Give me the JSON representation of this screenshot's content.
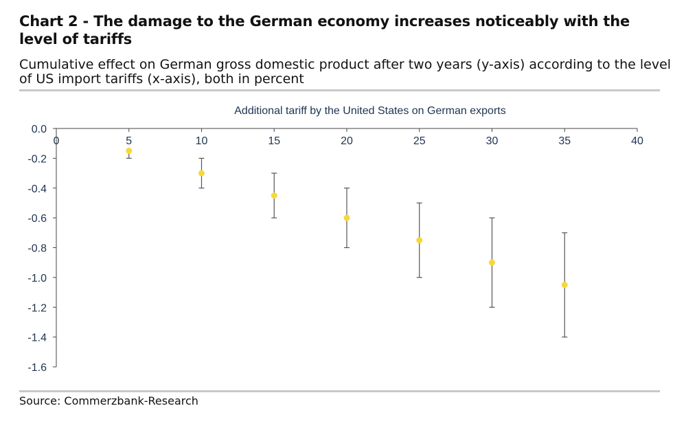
{
  "title": "Chart 2 - The damage to the German economy increases noticeably with the level of tariffs",
  "subtitle": "Cumulative effect on German gross domestic product after two years (y-axis) according to the level of US import tariffs (x-axis), both in percent",
  "source": "Source: Commerzbank-Research",
  "colors": {
    "point": "#f7d83a",
    "errorbar": "#555555",
    "axis": "#444444",
    "rule": "#c8c8c8"
  },
  "chart_data": {
    "type": "scatter",
    "xlabel": "Additional tariff by the United States on German exports",
    "ylabel": "",
    "xlim": [
      0,
      40
    ],
    "ylim": [
      -1.6,
      0.0
    ],
    "x_ticks": [
      "0",
      "5",
      "10",
      "15",
      "20",
      "25",
      "30",
      "35",
      "40"
    ],
    "y_ticks": [
      "0.0",
      "-0.2",
      "-0.4",
      "-0.6",
      "-0.8",
      "-1.0",
      "-1.2",
      "-1.4",
      "-1.6"
    ],
    "x_axis_position": "top",
    "grid": false,
    "points": [
      {
        "x": 5,
        "y": -0.15,
        "low": -0.2,
        "high": -0.15
      },
      {
        "x": 10,
        "y": -0.3,
        "low": -0.4,
        "high": -0.2
      },
      {
        "x": 15,
        "y": -0.45,
        "low": -0.6,
        "high": -0.3
      },
      {
        "x": 20,
        "y": -0.6,
        "low": -0.8,
        "high": -0.4
      },
      {
        "x": 25,
        "y": -0.75,
        "low": -1.0,
        "high": -0.5
      },
      {
        "x": 30,
        "y": -0.9,
        "low": -1.2,
        "high": -0.6
      },
      {
        "x": 35,
        "y": -1.05,
        "low": -1.4,
        "high": -0.7
      }
    ]
  }
}
